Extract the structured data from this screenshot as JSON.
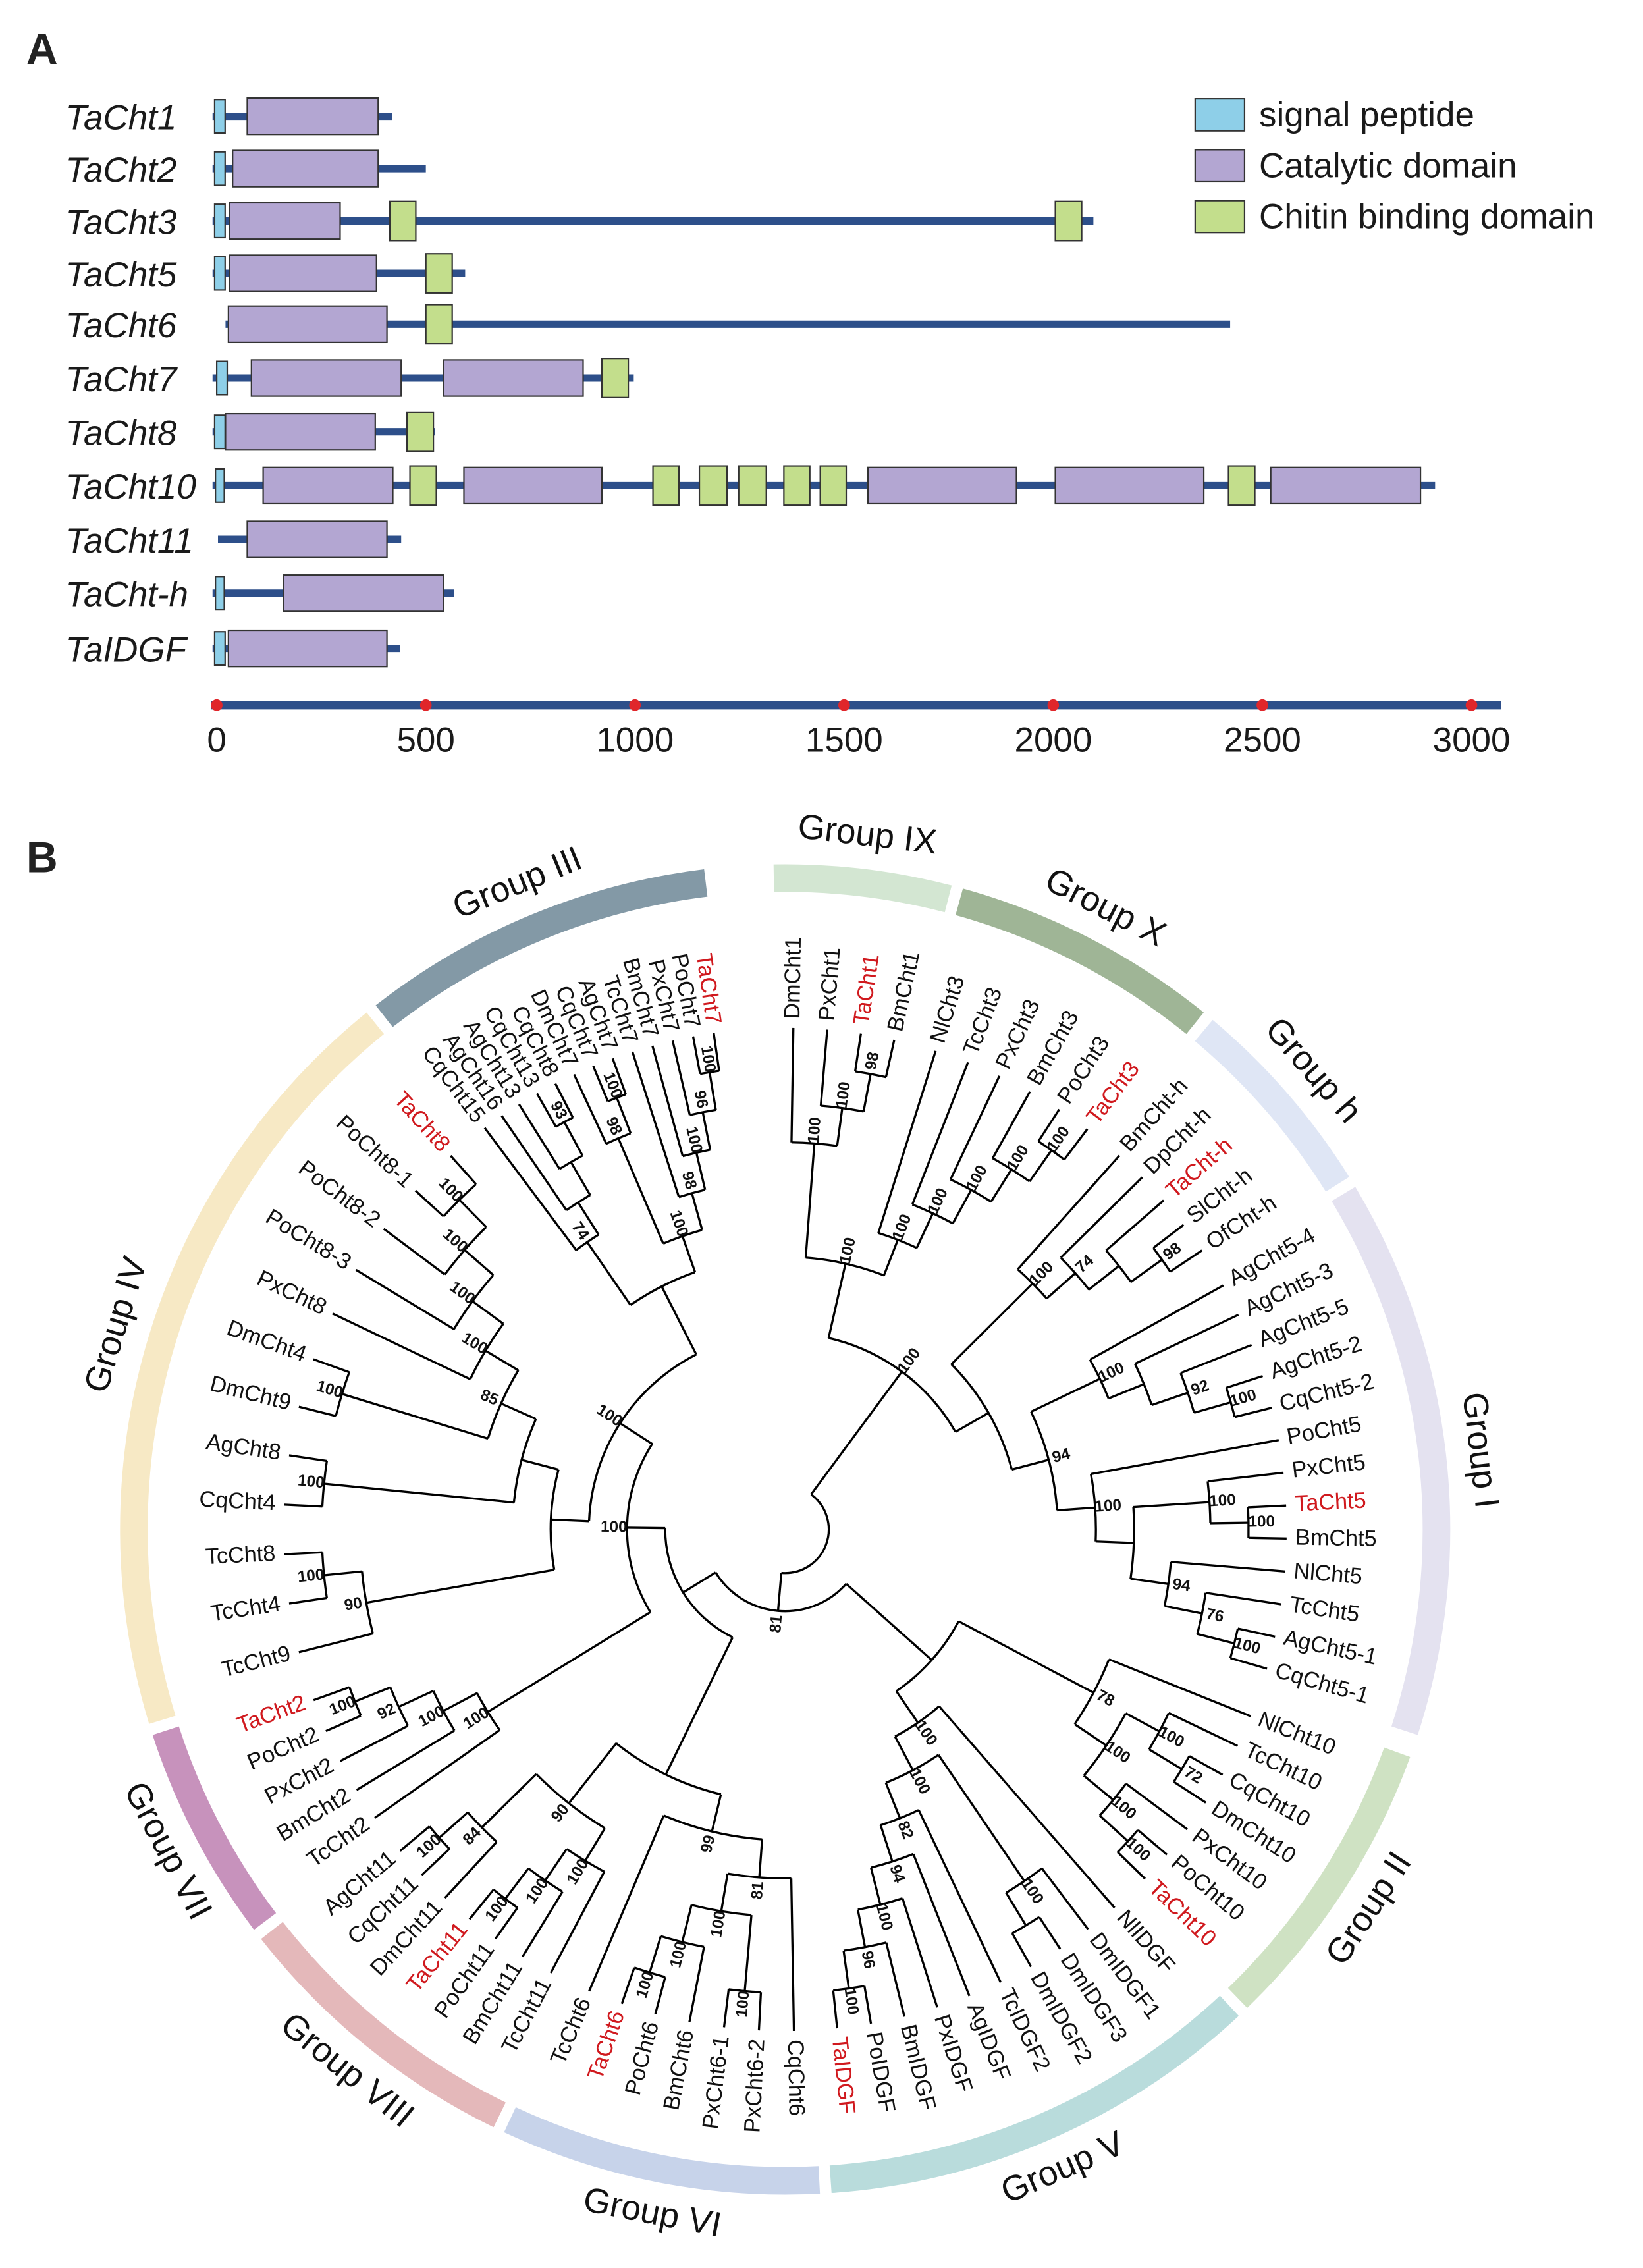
{
  "panel_a": {
    "label": "A",
    "colors": {
      "backbone": "#2d4f8a",
      "signal": "#8ecfe8",
      "catalytic": "#b3a6d2",
      "cbd": "#c3de8c",
      "axis_dot": "#e0262b"
    },
    "legend": [
      {
        "type": "signal",
        "label": "signal peptide"
      },
      {
        "type": "catalytic",
        "label": "Catalytic domain"
      },
      {
        "type": "cbd",
        "label": "Chitin binding domain"
      }
    ],
    "axis": {
      "ticks": [
        0,
        500,
        1000,
        1500,
        2000,
        2500,
        3000
      ],
      "max": 3070
    },
    "proteins": [
      {
        "name": "TaCht1",
        "line": [
          -10,
          420
        ],
        "domains": [
          [
            "signal",
            -5,
            20
          ],
          [
            "catalytic",
            73,
            386
          ]
        ]
      },
      {
        "name": "TaCht2",
        "line": [
          -10,
          500
        ],
        "domains": [
          [
            "signal",
            -5,
            20
          ],
          [
            "catalytic",
            38,
            386
          ]
        ]
      },
      {
        "name": "TaCht3",
        "line": [
          -10,
          2096
        ],
        "domains": [
          [
            "signal",
            -5,
            20
          ],
          [
            "catalytic",
            31,
            295
          ],
          [
            "cbd",
            414,
            476
          ],
          [
            "cbd",
            2005,
            2068
          ]
        ]
      },
      {
        "name": "TaCht5",
        "line": [
          -10,
          594
        ],
        "domains": [
          [
            "signal",
            -5,
            20
          ],
          [
            "catalytic",
            31,
            382
          ],
          [
            "cbd",
            500,
            563
          ]
        ]
      },
      {
        "name": "TaCht6",
        "line": [
          21,
          2423
        ],
        "domains": [
          [
            "catalytic",
            28,
            407
          ],
          [
            "cbd",
            500,
            563
          ]
        ]
      },
      {
        "name": "TaCht7",
        "line": [
          -10,
          997
        ],
        "domains": [
          [
            "signal",
            0,
            25
          ],
          [
            "catalytic",
            83,
            441
          ],
          [
            "catalytic",
            542,
            876
          ],
          [
            "cbd",
            921,
            984
          ]
        ]
      },
      {
        "name": "TaCht8",
        "line": [
          -10,
          521
        ],
        "domains": [
          [
            "signal",
            -5,
            20
          ],
          [
            "catalytic",
            21,
            379
          ],
          [
            "cbd",
            455,
            518
          ]
        ]
      },
      {
        "name": "TaCht10",
        "line": [
          -10,
          2913
        ],
        "domains": [
          [
            "signal",
            -3,
            18
          ],
          [
            "catalytic",
            111,
            421
          ],
          [
            "cbd",
            462,
            525
          ],
          [
            "catalytic",
            591,
            921
          ],
          [
            "cbd",
            1043,
            1105
          ],
          [
            "cbd",
            1154,
            1220
          ],
          [
            "cbd",
            1248,
            1314
          ],
          [
            "cbd",
            1356,
            1418
          ],
          [
            "cbd",
            1443,
            1505
          ],
          [
            "catalytic",
            1557,
            1912
          ],
          [
            "catalytic",
            2005,
            2360
          ],
          [
            "cbd",
            2419,
            2482
          ],
          [
            "catalytic",
            2520,
            2878
          ]
        ]
      },
      {
        "name": "TaCht11",
        "line": [
          3,
          441
        ],
        "domains": [
          [
            "catalytic",
            73,
            407
          ]
        ]
      },
      {
        "name": "TaCht-h",
        "line": [
          -10,
          567
        ],
        "domains": [
          [
            "signal",
            -3,
            18
          ],
          [
            "catalytic",
            160,
            542
          ]
        ]
      },
      {
        "name": "TaIDGF",
        "line": [
          -10,
          438
        ],
        "domains": [
          [
            "signal",
            -5,
            20
          ],
          [
            "catalytic",
            28,
            407
          ]
        ]
      }
    ]
  },
  "panel_b": {
    "label": "B",
    "highlight_color": "#d0191e",
    "highlighted": [
      "TaCht1",
      "TaCht3",
      "TaCht-h",
      "TaCht5",
      "TaCht10",
      "TaIDGF",
      "TaCht6",
      "TaCht11",
      "TaCht2",
      "TaCht8",
      "TaCht7"
    ],
    "newick": "((((DmCht1,(PxCht1,(TaCht1,BmCht1)98)100)100,(NlCht3,(TcCht3,(PxCht3,(BmCht3,(PoCht3,TaCht3)100)100)100)100)100)100,((BmCht-h,(DpCht-h,(TaCht-h,(SlCht-h,OfCht-h)98))74)100,((AgCht5-4,(AgCht5-3,(AgCht5-5,(AgCht5-2,CqCht5-2)100)92))100,(PoCht5,((PxCht5,(TaCht5,BmCht5)100)100,(NlCht5,(TcCht5,(AgCht5-1,CqCht5-1)100)76)94))100)94))100,(((NlCht10,((TcCht10,(CqCht10,DmCht10)72)100,(PxCht10,(PoCht10,TaCht10)100)100)100)78,(NlIDGF,((DmIDGF1,(DmIDGF3,DmIDGF2))100,(TcIDGF2,(AgIDGF,(PxIDGF,(BmIDGF,(PoIDGF,TaIDGF)100)96)100)94)82)100)100),((((CqCht6,((PxCht6-2,PxCht6-1)100,(BmCht6,(PoCht6,TaCht6)100)100)100)81,TcCht6)99,((TcCht11,(BmCht11,(PoCht11,TaCht11)100)100)100,(DmCht11,(CqCht11,AgCht11)100)84)90),((TcCht2,(BmCht2,(PxCht2,(PoCht2,TaCht2)100)92)100)100,(((TcCht9,(TcCht4,TcCht8)100)90,((CqCht4,AgCht8)100,((DmCht9,DmCht4)100,(PxCht8,(PoCht8-3,(PoCht8-2,(PoCht8-1,TaCht8)100)100)100)100)85)),((CqCht15,(AgCht16,(AgCht13,(CqCht13,CqCht8)93)))74,((DmCht7,(CqCht7,AgCht7)100)98,(TcCht7,(BmCht7,(PxCht7,(PoCht7,TaCht7)100)96)100)98)100))100)100))81)",
    "groups": [
      {
        "name": "Group IX",
        "color": "#d3e6d2",
        "first": "DmCht1",
        "last": "BmCht1"
      },
      {
        "name": "Group X",
        "color": "#9fb596",
        "first": "NlCht3",
        "last": "TaCht3"
      },
      {
        "name": "Group h",
        "color": "#dfe6f5",
        "first": "BmCht-h",
        "last": "OfCht-h"
      },
      {
        "name": "Group I",
        "color": "#e4e2f0",
        "first": "AgCht5-4",
        "last": "CqCht5-1"
      },
      {
        "name": "Group II",
        "color": "#cfe2c3",
        "first": "NlCht10",
        "last": "TaCht10"
      },
      {
        "name": "Group V",
        "color": "#b9dcdc",
        "first": "NlIDGF",
        "last": "TaIDGF"
      },
      {
        "name": "Group VI",
        "color": "#c7d3ea",
        "first": "CqCht6",
        "last": "TcCht6"
      },
      {
        "name": "Group VIII",
        "color": "#e4b8ba",
        "first": "TcCht11",
        "last": "AgCht11"
      },
      {
        "name": "Group VII",
        "color": "#c792bc",
        "first": "TcCht2",
        "last": "TaCht2"
      },
      {
        "name": "Group IV",
        "color": "#f7e9c5",
        "first": "TcCht9",
        "last": "TaCht8"
      },
      {
        "name": "Group III",
        "color": "#8399a6",
        "first": "CqCht15",
        "last": "TaCht7"
      }
    ]
  }
}
